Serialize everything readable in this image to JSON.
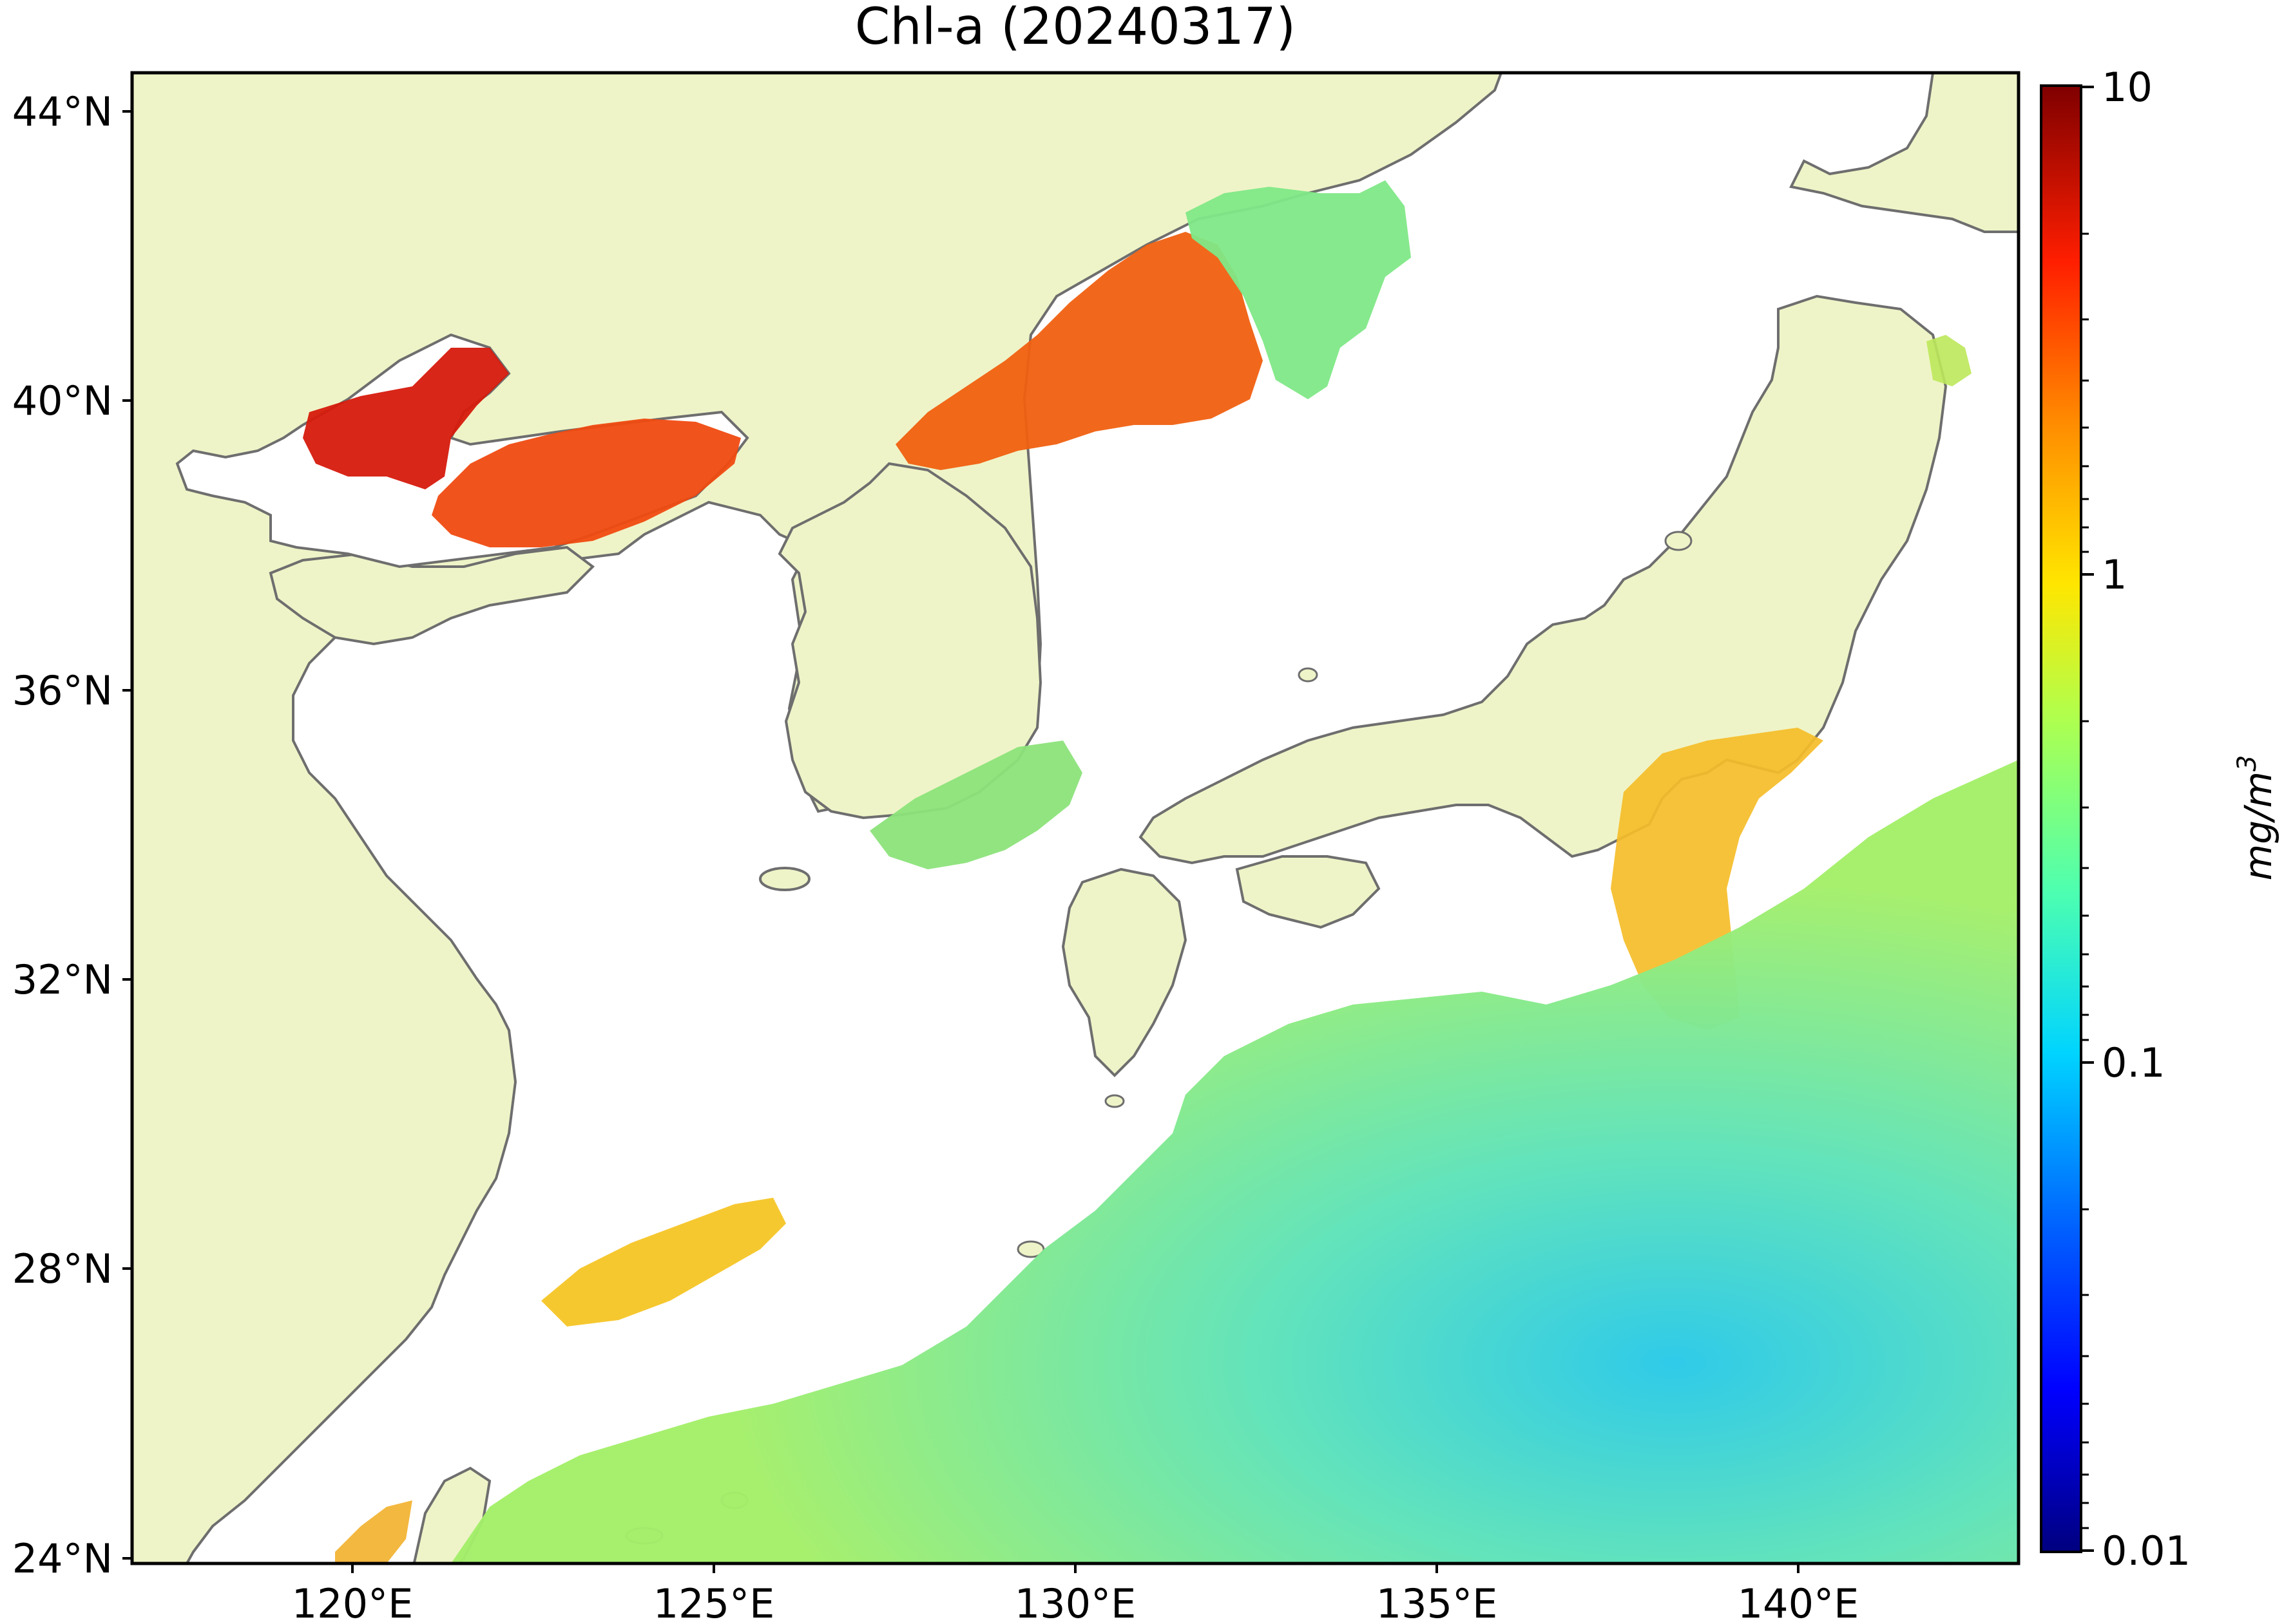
{
  "title": "Chl-a (20240317)",
  "lat_labels": [
    "44°N",
    "40°N",
    "36°N",
    "32°N",
    "28°N",
    "24°N"
  ],
  "lon_labels": [
    "120°E",
    "125°E",
    "130°E",
    "135°E",
    "140°E"
  ],
  "colorbar": {
    "label": "mg/m",
    "label_sup": "3",
    "ticks": [
      "10",
      "1",
      "0.1",
      "0.01"
    ],
    "scale": "log",
    "range": [
      0.01,
      10
    ],
    "colormap": [
      "#00007f",
      "#0000ff",
      "#007fff",
      "#00ffff",
      "#7fff7f",
      "#ffff00",
      "#ff7f00",
      "#ff0000",
      "#7f0000"
    ]
  },
  "colors": {
    "land": "#eff4c8",
    "coast": "#6e6e6e",
    "no_data": "#ffffff"
  }
}
